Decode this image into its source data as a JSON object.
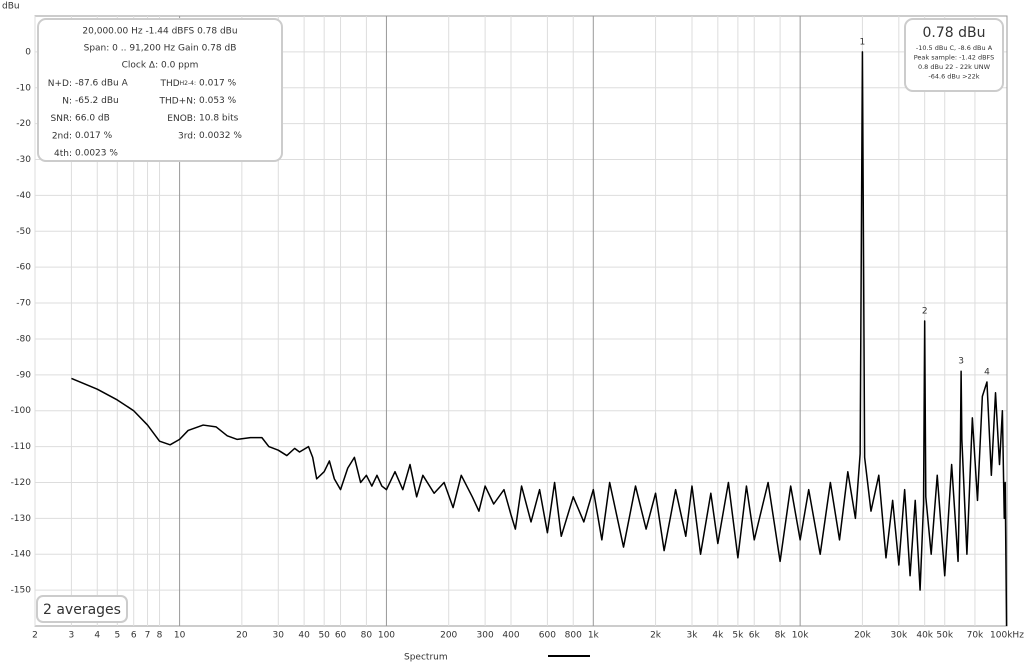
{
  "chart_data": {
    "type": "line",
    "y_label": "dBu",
    "x_log": true,
    "grid": true,
    "xlim": [
      2,
      100000
    ],
    "ylim": [
      -160,
      10
    ],
    "yticks": [
      0,
      -10,
      -20,
      -30,
      -40,
      -50,
      -60,
      -70,
      -80,
      -90,
      -100,
      -110,
      -120,
      -130,
      -140,
      -150
    ],
    "xticks": [
      2,
      3,
      4,
      5,
      6,
      7,
      8,
      10,
      20,
      30,
      40,
      50,
      60,
      80,
      100,
      200,
      300,
      400,
      600,
      800,
      {
        "value": 1000,
        "label": "1k"
      },
      {
        "value": 2000,
        "label": "2k"
      },
      {
        "value": 3000,
        "label": "3k"
      },
      {
        "value": 4000,
        "label": "4k"
      },
      {
        "value": 5000,
        "label": "5k"
      },
      {
        "value": 6000,
        "label": "6k"
      },
      {
        "value": 8000,
        "label": "8k"
      },
      {
        "value": 10000,
        "label": "10k"
      },
      {
        "value": 20000,
        "label": "20k"
      },
      {
        "value": 30000,
        "label": "30k"
      },
      {
        "value": 40000,
        "label": "40k"
      },
      {
        "value": 50000,
        "label": "50k"
      },
      {
        "value": 70000,
        "label": "70k"
      },
      {
        "value": 100000,
        "label": "100kHz"
      }
    ],
    "x": [
      3,
      4,
      5,
      6,
      7,
      8,
      9,
      10,
      11,
      13,
      15,
      17,
      19,
      22,
      25,
      27,
      30,
      33,
      36,
      38,
      42,
      44,
      46,
      50,
      53,
      56,
      60,
      65,
      70,
      75,
      80,
      85,
      90,
      95,
      100,
      110,
      120,
      130,
      140,
      150,
      170,
      190,
      210,
      230,
      260,
      280,
      300,
      330,
      370,
      400,
      420,
      450,
      500,
      550,
      600,
      650,
      700,
      800,
      900,
      1000,
      1100,
      1200,
      1400,
      1600,
      1800,
      2000,
      2200,
      2500,
      2800,
      3000,
      3300,
      3700,
      4000,
      4500,
      5000,
      5500,
      6000,
      7000,
      8000,
      9000,
      10000,
      11000,
      12500,
      14000,
      15500,
      17000,
      18500,
      19500,
      20000,
      20500,
      22000,
      24000,
      26000,
      28000,
      30000,
      32000,
      34000,
      36000,
      38000,
      39500,
      40000,
      40500,
      43000,
      46000,
      50000,
      54000,
      58000,
      59500,
      60000,
      60500,
      64000,
      68000,
      72000,
      76000,
      80000,
      84000,
      88000,
      92000,
      95000,
      97000,
      98000,
      99500
    ],
    "series": [
      {
        "name": "Spectrum",
        "color": "#000000",
        "values": [
          -91,
          -94,
          -97,
          -100,
          -104,
          -108.5,
          -109.5,
          -108,
          -105.5,
          -104,
          -104.5,
          -107,
          -108,
          -107.5,
          -107.5,
          -110,
          -111,
          -112.5,
          -110.5,
          -111.5,
          -110,
          -113,
          -119,
          -117,
          -114,
          -119,
          -122,
          -116,
          -113,
          -120,
          -118,
          -121,
          -118,
          -121,
          -122,
          -117,
          -122,
          -115,
          -124,
          -118,
          -123,
          -120,
          -127,
          -118,
          -124,
          -128,
          -121,
          -126,
          -122,
          -129,
          -133,
          -121,
          -131,
          -122,
          -134,
          -120,
          -135,
          -124,
          -131,
          -122,
          -136,
          -120,
          -138,
          -121,
          -133,
          -123,
          -139,
          -122,
          -135,
          -121,
          -140,
          -123,
          -137,
          -120,
          -141,
          -121,
          -136,
          -120,
          -142,
          -121,
          -136,
          -122,
          -140,
          -120,
          -136,
          -117,
          -130,
          -112,
          0,
          -113,
          -128,
          -118,
          -141,
          -125,
          -143,
          -122,
          -146,
          -125,
          -150,
          -126,
          -75,
          -124,
          -140,
          -118,
          -146,
          -115,
          -142,
          -110,
          -89,
          -108,
          -140,
          -102,
          -125,
          -96,
          -92,
          -118,
          -95,
          -115,
          -100,
          -130,
          -120,
          -160
        ]
      }
    ],
    "peak_markers": [
      {
        "text": "1",
        "x": 20000,
        "y": 0
      },
      {
        "text": "2",
        "x": 40000,
        "y": -75
      },
      {
        "text": "3",
        "x": 60000,
        "y": -89
      },
      {
        "text": "4",
        "x": 80000,
        "y": -92
      }
    ],
    "info_box": {
      "lines": [
        "20,000.00 Hz  -1.44 dBFS  0.78 dBu",
        "Span: 0 .. 91,200 Hz  Gain 0.78 dB",
        "Clock Δ: 0.0 ppm"
      ],
      "metrics": [
        {
          "label": "N+D:",
          "value": "-87.6 dBu A"
        },
        {
          "label": "THD",
          "sub": "H2-4:",
          "value": "0.017 %"
        },
        {
          "label": "N:",
          "value": "-65.2 dBu"
        },
        {
          "label": "THD+N:",
          "value": "0.053 %"
        },
        {
          "label": "SNR:",
          "value": "66.0 dB"
        },
        {
          "label": "ENOB:",
          "value": "10.8 bits"
        },
        {
          "label": "2nd:",
          "value": "0.017 %"
        },
        {
          "label": "3rd:",
          "value": "0.0032 %"
        },
        {
          "label": "4th:",
          "value": "0.0023 %"
        }
      ]
    },
    "level_box": {
      "value": "0.78 dBu",
      "lines": [
        "-10.5 dBu C, -8.6 dBu A",
        "Peak sample: -1.42 dBFS",
        "0.8 dBu 22 - 22k UNW",
        "-64.6 dBu >22k"
      ]
    },
    "averages": "2 averages"
  }
}
